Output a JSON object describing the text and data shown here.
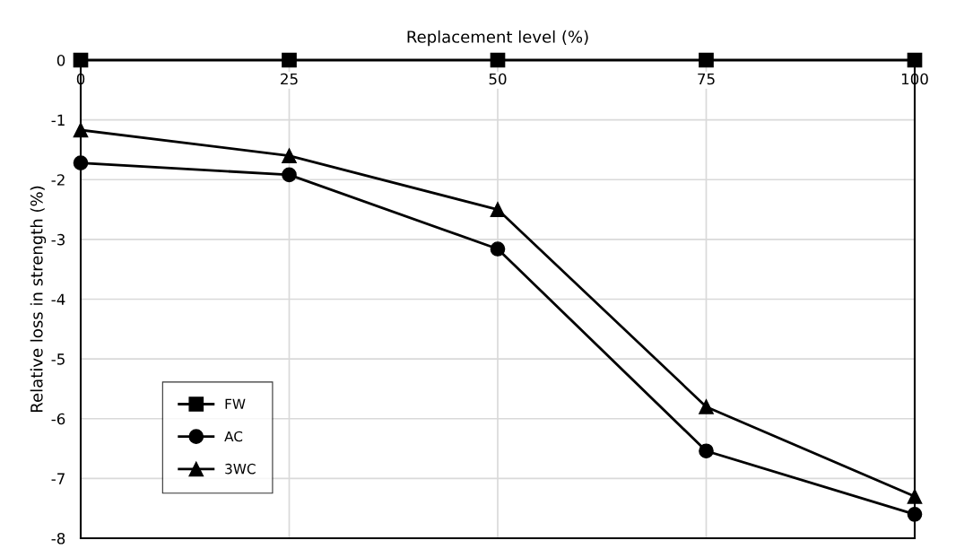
{
  "chart_data": {
    "type": "line",
    "xlabel": "Replacement level (%)",
    "ylabel": "Relative loss in strength (%)",
    "x": [
      0,
      25,
      50,
      75,
      100
    ],
    "xlim": [
      0,
      100
    ],
    "xticks": [
      0,
      25,
      50,
      75,
      100
    ],
    "ylim": [
      -8,
      0
    ],
    "yticks": [
      -8,
      -7,
      -6,
      -5,
      -4,
      -3,
      -2,
      -1,
      0
    ],
    "grid": true,
    "legend": "bottom left",
    "line_style": "solid",
    "series": [
      {
        "name": "FW",
        "color": "#000000",
        "marker": "square",
        "values": [
          0,
          0,
          0,
          0,
          0
        ]
      },
      {
        "name": "AC",
        "color": "#000000",
        "marker": "circle",
        "values": [
          -1.72,
          -1.92,
          -3.16,
          -6.54,
          -7.6
        ]
      },
      {
        "name": "3WC",
        "color": "#000000",
        "marker": "triangle",
        "values": [
          -1.17,
          -1.6,
          -2.5,
          -5.8,
          -7.3
        ]
      }
    ]
  }
}
